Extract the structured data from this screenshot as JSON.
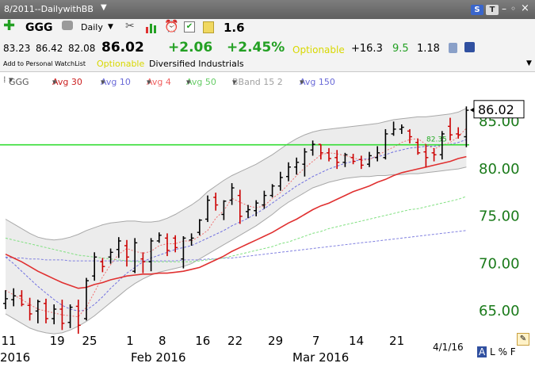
{
  "window": {
    "title": "8/2011--DailywithBB"
  },
  "toolbar": {
    "symbol": "GGG",
    "period": "Daily",
    "value": "1.6"
  },
  "quote": {
    "open": "83.23",
    "high": "86.42",
    "low": "82.08",
    "last": "86.02",
    "change": "+2.06",
    "pct_change": "+2.45%",
    "optionable": "Optionable",
    "extra1": "+16.3",
    "extra2": "9.5",
    "extra3": "1.18"
  },
  "sub": {
    "watchlist": "Add to Personal WatchList",
    "optionable": "Optionable",
    "industry": "Diversified Industrials"
  },
  "legend": {
    "symbol": "GGG",
    "avg30": "Avg 30",
    "avg10": "Avg 10",
    "avg4": "Avg 4",
    "avg50": "Avg 50",
    "bband": "BBand 15 2",
    "avg150": "Avg 150"
  },
  "bottom": {
    "date": "4/1/16",
    "flags": [
      "A",
      "L",
      "%",
      "F"
    ]
  },
  "colors": {
    "price_up": "#000000",
    "price_down": "#cc0000",
    "avg30": "#e03030",
    "avg10": "#7070e0",
    "avg4": "#f07070",
    "avg50": "#80e080",
    "avg150": "#8080e0",
    "bband_fill": "#ececec",
    "bband_line": "#a8a8a8",
    "hline": "#33dd33",
    "axis_text": "#1a7a1a"
  },
  "chart_data": {
    "type": "ohlc",
    "title": "",
    "symbol": "GGG",
    "ylim": [
      62,
      88
    ],
    "y_ticks": [
      65,
      70,
      75,
      80,
      85
    ],
    "y_tick_labels": [
      "65.00",
      "70.00",
      "75.00",
      "80.00",
      "85.00"
    ],
    "x_tick_labels": [
      {
        "i": 0,
        "label": "11"
      },
      {
        "i": 6,
        "label": "19"
      },
      {
        "i": 10,
        "label": "25"
      },
      {
        "i": 15,
        "label": "1"
      },
      {
        "i": 19,
        "label": "8"
      },
      {
        "i": 24,
        "label": "16"
      },
      {
        "i": 28,
        "label": "22"
      },
      {
        "i": 33,
        "label": "29"
      },
      {
        "i": 38,
        "label": "7"
      },
      {
        "i": 43,
        "label": "14"
      },
      {
        "i": 48,
        "label": "21"
      }
    ],
    "month_labels": [
      {
        "i": 0,
        "label": "2016"
      },
      {
        "i": 15,
        "label": "Feb 2016"
      },
      {
        "i": 35,
        "label": "Mar 2016"
      }
    ],
    "last_price": 86.02,
    "horizontal_line": 82.35,
    "horizontal_line_label": "82.35",
    "bars": [
      [
        65.6,
        67.0,
        65.0,
        66.1
      ],
      [
        66.0,
        67.2,
        65.3,
        66.4
      ],
      [
        66.4,
        67.0,
        65.3,
        65.5
      ],
      [
        65.4,
        66.2,
        63.8,
        64.5
      ],
      [
        64.8,
        66.0,
        63.5,
        65.8
      ],
      [
        65.6,
        66.1,
        63.5,
        64.0
      ],
      [
        64.0,
        65.5,
        63.4,
        65.0
      ],
      [
        65.0,
        66.0,
        62.8,
        63.5
      ],
      [
        63.6,
        65.5,
        63.0,
        65.2
      ],
      [
        65.3,
        66.0,
        62.4,
        63.3
      ],
      [
        64.0,
        68.3,
        63.8,
        68.0
      ],
      [
        68.5,
        71.0,
        68.0,
        70.5
      ],
      [
        70.0,
        70.4,
        68.9,
        69.5
      ],
      [
        70.5,
        71.4,
        69.8,
        71.0
      ],
      [
        71.3,
        72.6,
        70.4,
        72.2
      ],
      [
        71.7,
        72.3,
        69.5,
        70.5
      ],
      [
        69.0,
        72.5,
        68.8,
        72.0
      ],
      [
        70.3,
        71.0,
        68.8,
        70.0
      ],
      [
        70.0,
        72.5,
        69.0,
        72.2
      ],
      [
        72.2,
        73.1,
        72.0,
        72.8
      ],
      [
        72.5,
        73.0,
        70.6,
        71.2
      ],
      [
        72.5,
        72.8,
        71.0,
        71.5
      ],
      [
        70.3,
        72.7,
        69.3,
        72.5
      ],
      [
        72.3,
        73.0,
        71.7,
        72.5
      ],
      [
        73.1,
        74.5,
        72.8,
        74.4
      ],
      [
        74.5,
        77.0,
        74.2,
        76.5
      ],
      [
        76.8,
        77.3,
        75.4,
        76.0
      ],
      [
        75.0,
        76.5,
        74.4,
        76.4
      ],
      [
        76.5,
        78.3,
        76.0,
        77.8
      ],
      [
        77.0,
        77.6,
        74.0,
        74.8
      ],
      [
        75.3,
        76.0,
        74.6,
        75.5
      ],
      [
        75.4,
        76.5,
        74.8,
        76.2
      ],
      [
        76.0,
        77.5,
        75.6,
        77.0
      ],
      [
        77.0,
        78.2,
        76.8,
        78.0
      ],
      [
        78.0,
        79.5,
        77.5,
        78.9
      ],
      [
        79.0,
        80.5,
        78.5,
        80.0
      ],
      [
        80.0,
        81.0,
        79.2,
        80.5
      ],
      [
        80.3,
        82.0,
        79.0,
        81.6
      ],
      [
        81.8,
        82.8,
        81.2,
        82.4
      ],
      [
        82.4,
        82.4,
        80.8,
        81.5
      ],
      [
        81.5,
        82.0,
        80.6,
        80.9
      ],
      [
        81.0,
        81.8,
        79.8,
        80.5
      ],
      [
        80.5,
        81.5,
        80.0,
        81.3
      ],
      [
        81.0,
        81.4,
        80.3,
        80.6
      ],
      [
        80.8,
        81.2,
        79.8,
        80.2
      ],
      [
        80.3,
        81.6,
        80.0,
        81.2
      ],
      [
        81.0,
        82.2,
        80.6,
        81.5
      ],
      [
        81.0,
        84.0,
        80.8,
        83.5
      ],
      [
        83.5,
        84.8,
        83.3,
        84.0
      ],
      [
        84.0,
        84.5,
        83.5,
        84.2
      ],
      [
        83.8,
        84.0,
        82.5,
        83.2
      ],
      [
        82.6,
        83.0,
        81.3,
        81.5
      ],
      [
        81.6,
        82.4,
        80.0,
        81.0
      ],
      [
        81.5,
        82.0,
        80.6,
        81.3
      ],
      [
        81.3,
        83.8,
        80.8,
        83.5
      ],
      [
        84.3,
        85.2,
        82.8,
        83.4
      ],
      [
        83.5,
        84.2,
        83.0,
        83.4
      ],
      [
        83.2,
        86.4,
        82.1,
        86.0
      ]
    ],
    "series": [
      {
        "name": "Avg 30",
        "values": [
          70.8,
          70.4,
          70.0,
          69.5,
          69.0,
          68.6,
          68.2,
          67.8,
          67.5,
          67.2,
          67.3,
          67.6,
          67.8,
          68.1,
          68.3,
          68.5,
          68.6,
          68.7,
          68.7,
          68.8,
          68.8,
          68.9,
          69.0,
          69.2,
          69.4,
          69.8,
          70.2,
          70.6,
          71.1,
          71.5,
          71.9,
          72.3,
          72.7,
          73.1,
          73.6,
          74.1,
          74.5,
          75.0,
          75.5,
          75.9,
          76.2,
          76.6,
          77.0,
          77.4,
          77.7,
          78.0,
          78.4,
          78.7,
          79.1,
          79.4,
          79.6,
          79.8,
          80.0,
          80.2,
          80.4,
          80.6,
          80.9,
          81.1
        ]
      },
      {
        "name": "Avg 10",
        "values": [
          70.5,
          69.8,
          69.0,
          68.2,
          67.4,
          66.7,
          66.0,
          65.4,
          65.0,
          64.8,
          64.9,
          65.5,
          66.3,
          67.2,
          68.0,
          68.8,
          69.4,
          70.0,
          70.4,
          70.7,
          71.0,
          71.3,
          71.5,
          71.7,
          72.1,
          72.5,
          72.9,
          73.3,
          73.8,
          74.2,
          74.6,
          75.1,
          75.6,
          76.2,
          76.8,
          77.4,
          78.0,
          78.5,
          79.0,
          79.4,
          79.8,
          80.1,
          80.4,
          80.6,
          80.8,
          80.9,
          81.1,
          81.3,
          81.6,
          81.8,
          82.0,
          82.1,
          82.2,
          82.2,
          82.3,
          82.4,
          82.6,
          82.9
        ]
      },
      {
        "name": "Avg 4",
        "values": [
          67.0,
          66.5,
          66.0,
          65.5,
          65.0,
          64.8,
          64.6,
          64.4,
          64.3,
          64.2,
          65.2,
          66.8,
          68.4,
          69.7,
          70.8,
          71.4,
          71.1,
          70.9,
          71.1,
          71.7,
          71.9,
          71.9,
          72.2,
          72.2,
          72.7,
          73.3,
          74.6,
          75.4,
          76.7,
          76.3,
          75.9,
          75.7,
          75.9,
          76.7,
          77.3,
          78.2,
          79.1,
          79.9,
          80.6,
          81.3,
          81.5,
          81.4,
          81.2,
          81.0,
          80.7,
          80.8,
          81.2,
          81.7,
          82.1,
          82.6,
          82.9,
          83.0,
          82.4,
          81.9,
          82.3,
          82.6,
          83.2,
          84.1
        ]
      },
      {
        "name": "Avg 50",
        "values": [
          72.5,
          72.3,
          72.1,
          71.9,
          71.7,
          71.5,
          71.3,
          71.1,
          70.9,
          70.7,
          70.6,
          70.5,
          70.4,
          70.3,
          70.2,
          70.1,
          70.0,
          70.0,
          70.0,
          70.0,
          70.0,
          70.0,
          70.0,
          70.0,
          70.1,
          70.2,
          70.3,
          70.4,
          70.6,
          70.8,
          71.0,
          71.2,
          71.4,
          71.6,
          71.9,
          72.1,
          72.4,
          72.7,
          73.0,
          73.2,
          73.5,
          73.7,
          73.9,
          74.1,
          74.3,
          74.5,
          74.7,
          74.9,
          75.1,
          75.3,
          75.5,
          75.6,
          75.8,
          76.0,
          76.2,
          76.4,
          76.6,
          76.9
        ]
      },
      {
        "name": "Avg 150",
        "values": [
          70.5,
          70.4,
          70.4,
          70.3,
          70.3,
          70.2,
          70.2,
          70.2,
          70.1,
          70.1,
          70.1,
          70.1,
          70.1,
          70.1,
          70.1,
          70.1,
          70.1,
          70.1,
          70.1,
          70.1,
          70.1,
          70.1,
          70.2,
          70.2,
          70.2,
          70.3,
          70.3,
          70.4,
          70.4,
          70.5,
          70.6,
          70.7,
          70.8,
          70.9,
          71.0,
          71.1,
          71.2,
          71.3,
          71.4,
          71.5,
          71.6,
          71.7,
          71.8,
          71.9,
          72.0,
          72.1,
          72.2,
          72.3,
          72.4,
          72.5,
          72.6,
          72.7,
          72.8,
          72.9,
          73.0,
          73.1,
          73.2,
          73.3
        ]
      },
      {
        "name": "BBand upper",
        "values": [
          74.5,
          74.0,
          73.5,
          73.0,
          72.6,
          72.4,
          72.3,
          72.4,
          72.6,
          72.9,
          73.3,
          73.6,
          73.9,
          74.1,
          74.2,
          74.3,
          74.3,
          74.2,
          74.2,
          74.3,
          74.6,
          75.0,
          75.5,
          76.0,
          76.6,
          77.4,
          78.0,
          78.6,
          79.1,
          79.5,
          79.9,
          80.3,
          80.8,
          81.3,
          81.9,
          82.5,
          83.0,
          83.4,
          83.7,
          83.9,
          84.0,
          84.1,
          84.2,
          84.3,
          84.4,
          84.5,
          84.6,
          84.8,
          85.0,
          85.1,
          85.2,
          85.3,
          85.3,
          85.4,
          85.5,
          85.6,
          85.8,
          86.2
        ]
      },
      {
        "name": "BBand lower",
        "values": [
          64.5,
          64.0,
          63.5,
          63.0,
          62.7,
          62.5,
          62.4,
          62.5,
          62.8,
          63.2,
          63.7,
          64.3,
          65.0,
          65.7,
          66.4,
          67.1,
          67.7,
          68.2,
          68.6,
          68.9,
          69.1,
          69.3,
          69.5,
          69.8,
          70.3,
          70.8,
          71.3,
          71.8,
          72.3,
          72.8,
          73.3,
          73.8,
          74.4,
          75.0,
          75.7,
          76.3,
          76.8,
          77.3,
          77.8,
          78.1,
          78.4,
          78.6,
          78.8,
          78.9,
          79.0,
          79.0,
          79.1,
          79.1,
          79.2,
          79.2,
          79.3,
          79.3,
          79.4,
          79.5,
          79.6,
          79.7,
          79.8,
          80.0
        ]
      }
    ]
  }
}
